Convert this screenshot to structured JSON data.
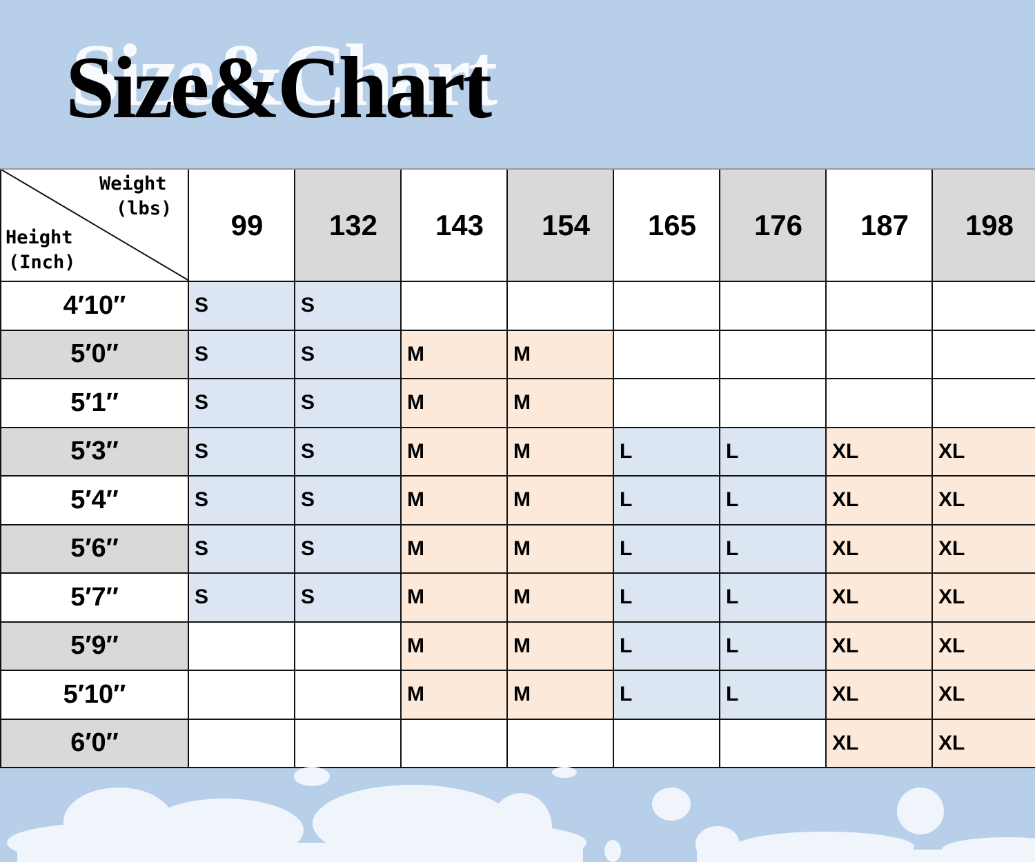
{
  "title": "Size&Chart",
  "corner": {
    "weight_label": "Weight",
    "weight_unit": "(lbs)",
    "height_label": "Height",
    "height_unit": "(Inch)"
  },
  "weights": [
    "99",
    "132",
    "143",
    "154",
    "165",
    "176",
    "187",
    "198"
  ],
  "rows": [
    {
      "height": "4′10″",
      "sizes": [
        "S",
        "S",
        "",
        "",
        "",
        "",
        "",
        ""
      ]
    },
    {
      "height": "5′0″",
      "sizes": [
        "S",
        "S",
        "M",
        "M",
        "",
        "",
        "",
        ""
      ]
    },
    {
      "height": "5′1″",
      "sizes": [
        "S",
        "S",
        "M",
        "M",
        "",
        "",
        "",
        ""
      ]
    },
    {
      "height": "5′3″",
      "sizes": [
        "S",
        "S",
        "M",
        "M",
        "L",
        "L",
        "XL",
        "XL"
      ]
    },
    {
      "height": "5′4″",
      "sizes": [
        "S",
        "S",
        "M",
        "M",
        "L",
        "L",
        "XL",
        "XL"
      ]
    },
    {
      "height": "5′6″",
      "sizes": [
        "S",
        "S",
        "M",
        "M",
        "L",
        "L",
        "XL",
        "XL"
      ]
    },
    {
      "height": "5′7″",
      "sizes": [
        "S",
        "S",
        "M",
        "M",
        "L",
        "L",
        "XL",
        "XL"
      ]
    },
    {
      "height": "5′9″",
      "sizes": [
        "",
        "",
        "M",
        "M",
        "L",
        "L",
        "XL",
        "XL"
      ]
    },
    {
      "height": "5′10″",
      "sizes": [
        "",
        "",
        "M",
        "M",
        "L",
        "L",
        "XL",
        "XL"
      ]
    },
    {
      "height": "6′0″",
      "sizes": [
        "",
        "",
        "",
        "",
        "",
        "",
        "XL",
        "XL"
      ]
    }
  ],
  "colors": {
    "background": "#b8cfe9",
    "s_l_fill": "#dce6f2",
    "m_xl_fill": "#fce9da",
    "header_gray": "#d9d9d9"
  }
}
